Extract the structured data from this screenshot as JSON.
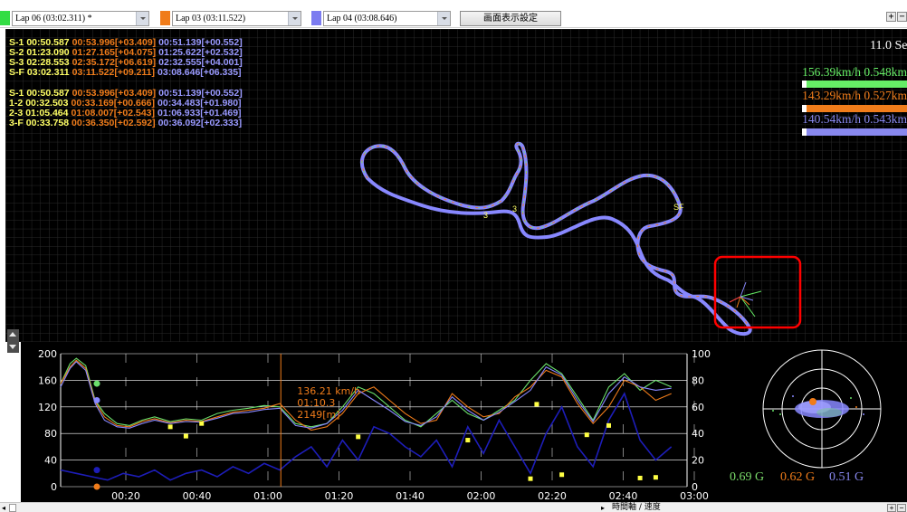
{
  "laps": [
    {
      "label": "Lap 06  (03:02.311) *",
      "color": "#33dd44"
    },
    {
      "label": "Lap 03  (03:11.522)",
      "color": "#f07c1a"
    },
    {
      "label": "Lap 04  (03:08.646)",
      "color": "#7b7bf0"
    }
  ],
  "toolbar": {
    "screen_settings_label": "画面表示設定",
    "zoom_in": "+",
    "zoom_out": "−"
  },
  "sectors_top": [
    {
      "name": "S-1",
      "a": "00:50.587",
      "b": "00:53.996[+03.409]",
      "c": "00:51.139[+00.552]"
    },
    {
      "name": "S-2",
      "a": "01:23.090",
      "b": "01:27.165[+04.075]",
      "c": "01:25.622[+02.532]"
    },
    {
      "name": "S-3",
      "a": "02:28.553",
      "b": "02:35.172[+06.619]",
      "c": "02:32.555[+04.001]"
    },
    {
      "name": "S-F",
      "a": "03:02.311",
      "b": "03:11.522[+09.211]",
      "c": "03:08.646[+06.335]"
    }
  ],
  "sectors_bottom": [
    {
      "name": "S-1",
      "a": "00:50.587",
      "b": "00:53.996[+03.409]",
      "c": "00:51.139[+00.552]"
    },
    {
      "name": "1-2",
      "a": "00:32.503",
      "b": "00:33.169[+00.666]",
      "c": "00:34.483[+01.980]"
    },
    {
      "name": "2-3",
      "a": "01:05.464",
      "b": "01:08.007[+02.543]",
      "c": "01:06.933[+01.469]"
    },
    {
      "name": "3-F",
      "a": "00:33.758",
      "b": "00:36.350[+02.592]",
      "c": "00:36.092[+02.333]"
    }
  ],
  "map": {
    "time_readout": "11.0 Sec",
    "sector_marks": [
      "3",
      "3",
      "SF"
    ],
    "speeds": [
      {
        "text": "156.39km/h  0.548km",
        "color": "#66ee66",
        "progress": 0.05
      },
      {
        "text": "143.29km/h  0.527km",
        "color": "#f07c1a",
        "progress": 0.05
      },
      {
        "text": "140.54km/h  0.543km",
        "color": "#8888ee",
        "progress": 0.05
      }
    ],
    "highlight_color": "#ff0000"
  },
  "chart_data": {
    "type": "line",
    "x_ticks": [
      "00:20",
      "00:40",
      "01:00",
      "01:20",
      "01:40",
      "02:00",
      "02:20",
      "02:40",
      "03:00"
    ],
    "y_left_ticks": [
      "200",
      "160",
      "120",
      "80",
      "40",
      "0"
    ],
    "y_right_ticks": [
      "100",
      "80",
      "60",
      "40",
      "20",
      "0"
    ],
    "ylim_left": [
      0,
      200
    ],
    "ylim_right": [
      0,
      100
    ],
    "xlim": [
      0,
      200
    ],
    "grid": true,
    "cursor": {
      "speed": "136.21 km/h",
      "time": "01:10.3",
      "distance": "2149[m]",
      "x": 70.3
    },
    "series": [
      {
        "color": "#6be06b",
        "values": [
          [
            0,
            155
          ],
          [
            3,
            185
          ],
          [
            5,
            193
          ],
          [
            8,
            182
          ],
          [
            11,
            130
          ],
          [
            14,
            110
          ],
          [
            18,
            95
          ],
          [
            22,
            92
          ],
          [
            26,
            100
          ],
          [
            30,
            105
          ],
          [
            35,
            98
          ],
          [
            40,
            102
          ],
          [
            45,
            100
          ],
          [
            50,
            110
          ],
          [
            55,
            115
          ],
          [
            60,
            118
          ],
          [
            65,
            122
          ],
          [
            70,
            120
          ],
          [
            75,
            95
          ],
          [
            80,
            90
          ],
          [
            85,
            95
          ],
          [
            90,
            120
          ],
          [
            95,
            150
          ],
          [
            100,
            140
          ],
          [
            105,
            120
          ],
          [
            110,
            100
          ],
          [
            115,
            90
          ],
          [
            120,
            110
          ],
          [
            125,
            130
          ],
          [
            130,
            110
          ],
          [
            135,
            100
          ],
          [
            140,
            115
          ],
          [
            145,
            130
          ],
          [
            150,
            160
          ],
          [
            155,
            185
          ],
          [
            160,
            170
          ],
          [
            165,
            135
          ],
          [
            170,
            100
          ],
          [
            175,
            150
          ],
          [
            180,
            170
          ],
          [
            185,
            145
          ],
          [
            190,
            160
          ],
          [
            195,
            150
          ]
        ]
      },
      {
        "color": "#f07c1a",
        "values": [
          [
            0,
            155
          ],
          [
            3,
            180
          ],
          [
            5,
            190
          ],
          [
            8,
            178
          ],
          [
            11,
            128
          ],
          [
            14,
            105
          ],
          [
            18,
            92
          ],
          [
            22,
            90
          ],
          [
            26,
            98
          ],
          [
            30,
            102
          ],
          [
            35,
            96
          ],
          [
            40,
            100
          ],
          [
            45,
            98
          ],
          [
            50,
            105
          ],
          [
            55,
            112
          ],
          [
            60,
            115
          ],
          [
            65,
            118
          ],
          [
            70,
            125
          ],
          [
            75,
            100
          ],
          [
            80,
            85
          ],
          [
            85,
            90
          ],
          [
            90,
            110
          ],
          [
            95,
            140
          ],
          [
            100,
            150
          ],
          [
            105,
            130
          ],
          [
            110,
            110
          ],
          [
            115,
            95
          ],
          [
            120,
            100
          ],
          [
            125,
            140
          ],
          [
            130,
            120
          ],
          [
            135,
            105
          ],
          [
            140,
            110
          ],
          [
            145,
            135
          ],
          [
            150,
            150
          ],
          [
            155,
            175
          ],
          [
            160,
            165
          ],
          [
            165,
            125
          ],
          [
            170,
            95
          ],
          [
            175,
            120
          ],
          [
            180,
            160
          ],
          [
            185,
            150
          ],
          [
            190,
            130
          ],
          [
            195,
            140
          ]
        ]
      },
      {
        "color": "#8888ff",
        "values": [
          [
            0,
            150
          ],
          [
            3,
            178
          ],
          [
            5,
            188
          ],
          [
            8,
            175
          ],
          [
            11,
            125
          ],
          [
            14,
            100
          ],
          [
            18,
            90
          ],
          [
            22,
            88
          ],
          [
            26,
            95
          ],
          [
            30,
            100
          ],
          [
            35,
            95
          ],
          [
            40,
            98
          ],
          [
            45,
            97
          ],
          [
            50,
            103
          ],
          [
            55,
            110
          ],
          [
            60,
            112
          ],
          [
            65,
            116
          ],
          [
            70,
            118
          ],
          [
            75,
            92
          ],
          [
            80,
            88
          ],
          [
            85,
            95
          ],
          [
            90,
            115
          ],
          [
            95,
            145
          ],
          [
            100,
            130
          ],
          [
            105,
            115
          ],
          [
            110,
            98
          ],
          [
            115,
            92
          ],
          [
            120,
            105
          ],
          [
            125,
            135
          ],
          [
            130,
            115
          ],
          [
            135,
            100
          ],
          [
            140,
            112
          ],
          [
            145,
            128
          ],
          [
            150,
            145
          ],
          [
            155,
            180
          ],
          [
            160,
            168
          ],
          [
            165,
            130
          ],
          [
            170,
            98
          ],
          [
            175,
            140
          ],
          [
            180,
            165
          ],
          [
            185,
            150
          ],
          [
            190,
            145
          ],
          [
            195,
            148
          ]
        ]
      },
      {
        "color": "#1d1db8",
        "values": [
          [
            0,
            25
          ],
          [
            5,
            20
          ],
          [
            10,
            15
          ],
          [
            15,
            10
          ],
          [
            20,
            20
          ],
          [
            25,
            15
          ],
          [
            30,
            25
          ],
          [
            35,
            10
          ],
          [
            40,
            20
          ],
          [
            45,
            25
          ],
          [
            50,
            15
          ],
          [
            55,
            30
          ],
          [
            60,
            20
          ],
          [
            65,
            35
          ],
          [
            70,
            25
          ],
          [
            75,
            45
          ],
          [
            80,
            60
          ],
          [
            85,
            30
          ],
          [
            90,
            70
          ],
          [
            95,
            40
          ],
          [
            100,
            90
          ],
          [
            105,
            80
          ],
          [
            110,
            60
          ],
          [
            115,
            45
          ],
          [
            120,
            70
          ],
          [
            125,
            30
          ],
          [
            130,
            90
          ],
          [
            135,
            50
          ],
          [
            140,
            100
          ],
          [
            145,
            60
          ],
          [
            150,
            20
          ],
          [
            155,
            80
          ],
          [
            160,
            120
          ],
          [
            165,
            60
          ],
          [
            170,
            30
          ],
          [
            175,
            100
          ],
          [
            180,
            140
          ],
          [
            185,
            70
          ],
          [
            190,
            40
          ],
          [
            195,
            60
          ]
        ]
      }
    ]
  },
  "g_values": [
    {
      "text": "0.69 G",
      "color": "#7bdc6b"
    },
    {
      "text": "0.62 G",
      "color": "#f07c1a"
    },
    {
      "text": "0.51 G",
      "color": "#8888ee"
    }
  ],
  "status": {
    "label": "時間軸 / 速度"
  }
}
